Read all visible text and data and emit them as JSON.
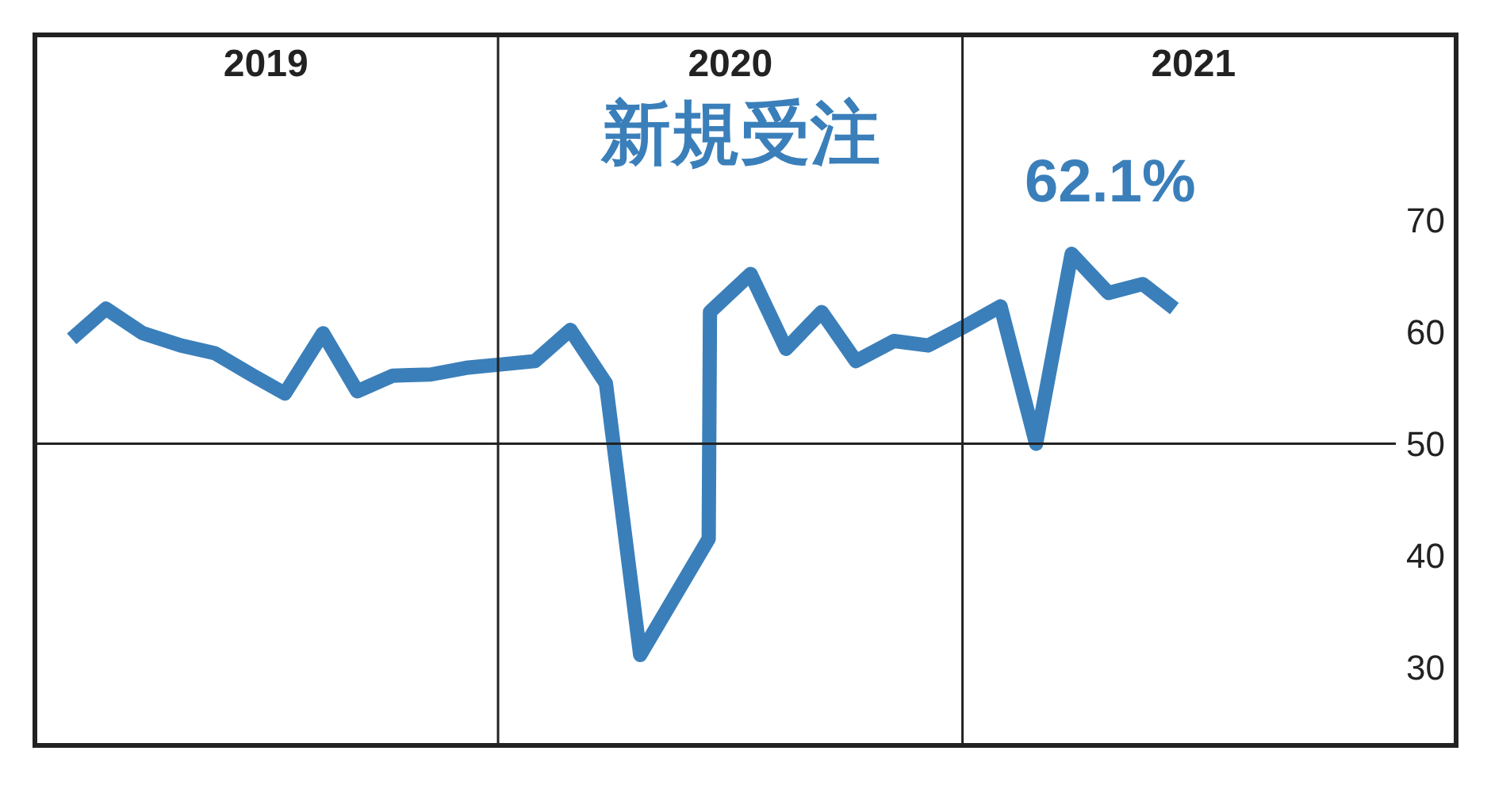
{
  "chart_data": {
    "type": "line",
    "title": "新規受注",
    "x": [
      "2019-01-30",
      "2019-02-26",
      "2019-03-27",
      "2019-04-26",
      "2019-05-23",
      "2019-06-22",
      "2019-07-17",
      "2019-08-16",
      "2019-09-12",
      "2019-10-10",
      "2019-11-09",
      "2019-12-07",
      "2020-01-03",
      "2020-01-30",
      "2020-02-27",
      "2020-03-26",
      "2020-04-22",
      "2020-06-15",
      "2020-06-16",
      "2020-07-18",
      "2020-08-15",
      "2020-09-12",
      "2020-10-09",
      "2020-11-08",
      "2020-12-05",
      "2021-01-01",
      "2021-01-31",
      "2021-02-28",
      "2021-03-28",
      "2021-04-26",
      "2021-05-23",
      "2021-06-17"
    ],
    "series": [
      {
        "color": "#3a7fba",
        "values": [
          59.4,
          62.1,
          59.9,
          58.8,
          58.1,
          56.1,
          54.5,
          59.9,
          54.7,
          56.1,
          56.2,
          56.8,
          57.1,
          57.4,
          60.2,
          55.4,
          31.1,
          41.5,
          61.8,
          65.2,
          58.5,
          61.8,
          57.4,
          59.2,
          58.8,
          60.4,
          62.3,
          50.0,
          67.0,
          63.5,
          64.3,
          62.1
        ]
      }
    ],
    "annotations": [
      {
        "text": "62.1%",
        "x": "2021-06-17",
        "y": 62.1
      }
    ],
    "xlim": [
      "2019-01-01",
      "2022-01-25"
    ],
    "xticks": [
      {
        "value": "2019-07-02",
        "label": "2019"
      },
      {
        "value": "2020-07-02",
        "label": "2020"
      },
      {
        "value": "2021-07-02",
        "label": "2021"
      }
    ],
    "ylim": [
      23,
      86.6
    ],
    "yticks": [
      30,
      40,
      50,
      60,
      70
    ],
    "ref_lines": [
      {
        "axis": "x",
        "value": "2020-01-01",
        "color": "#222222"
      },
      {
        "axis": "x",
        "value": "2021-01-01",
        "color": "#222222"
      },
      {
        "axis": "y",
        "value": 50,
        "color": "#222222"
      }
    ],
    "marker": "none",
    "line_style": "solid"
  }
}
